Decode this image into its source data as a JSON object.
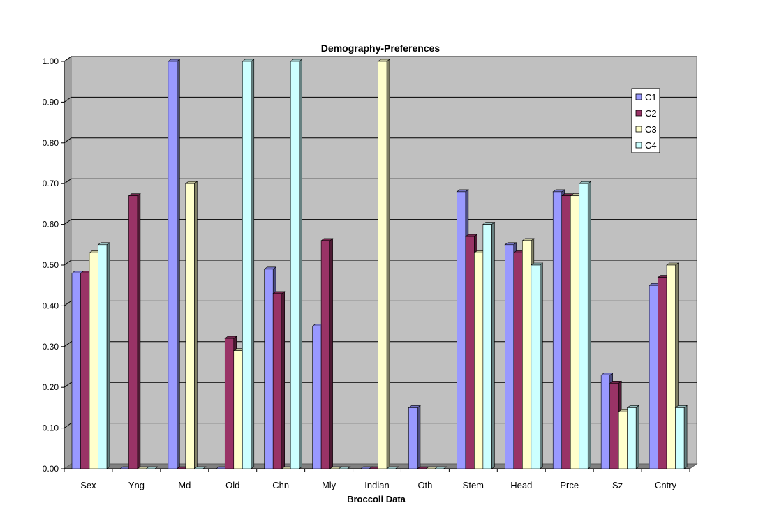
{
  "chart_data": {
    "type": "bar",
    "title": "Demography-Preferences",
    "xlabel": "Broccoli Data",
    "ylabel": "",
    "ylim": [
      0,
      1
    ],
    "yticks": [
      "0.00",
      "0.10",
      "0.20",
      "0.30",
      "0.40",
      "0.50",
      "0.60",
      "0.70",
      "0.80",
      "0.90",
      "1.00"
    ],
    "categories": [
      "Sex",
      "Yng",
      "Md",
      "Old",
      "Chn",
      "Mly",
      "Indian",
      "Oth",
      "Stem",
      "Head",
      "Prce",
      "Sz",
      "Cntry"
    ],
    "series": [
      {
        "name": "C1",
        "color": "#9999FF",
        "values": [
          0.48,
          0.0,
          1.0,
          0.0,
          0.49,
          0.35,
          0.0,
          0.15,
          0.68,
          0.55,
          0.68,
          0.23,
          0.45
        ]
      },
      {
        "name": "C2",
        "color": "#993366",
        "values": [
          0.48,
          0.67,
          0.0,
          0.32,
          0.43,
          0.56,
          0.0,
          0.0,
          0.57,
          0.53,
          0.67,
          0.21,
          0.47
        ]
      },
      {
        "name": "C3",
        "color": "#FFFFCC",
        "values": [
          0.53,
          0.0,
          0.7,
          0.29,
          0.0,
          0.0,
          1.0,
          0.0,
          0.53,
          0.56,
          0.67,
          0.14,
          0.5
        ]
      },
      {
        "name": "C4",
        "color": "#CCFFFF",
        "values": [
          0.55,
          0.0,
          0.0,
          1.0,
          1.0,
          0.0,
          0.0,
          0.0,
          0.6,
          0.5,
          0.7,
          0.15,
          0.15
        ]
      }
    ],
    "grid": true,
    "legend": "top-right",
    "plot_background": "#C0C0C0"
  }
}
